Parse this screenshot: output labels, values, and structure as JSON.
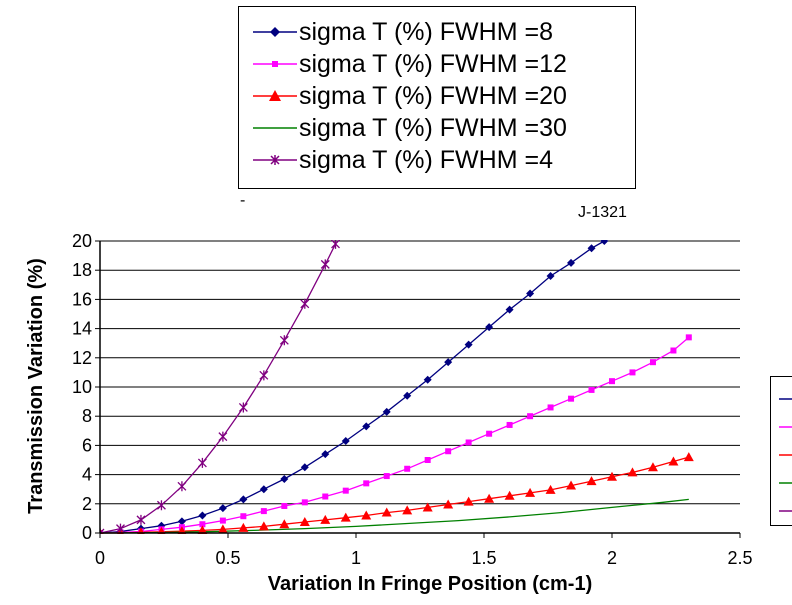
{
  "chart_data": {
    "type": "line",
    "xlabel": "Variation In Fringe Position (cm-1)",
    "ylabel": "Transmission Variation (%)",
    "xlim": [
      0,
      2.5
    ],
    "ylim": [
      0,
      20
    ],
    "x_ticks": [
      "0",
      "0.5",
      "1",
      "1.5",
      "2",
      "2.5"
    ],
    "y_ticks": [
      "0",
      "2",
      "4",
      "6",
      "8",
      "10",
      "12",
      "14",
      "16",
      "18",
      "20"
    ],
    "grid": "horizontal",
    "legend_position": "top",
    "annotations": [
      "-",
      "J-1321"
    ],
    "series": [
      {
        "name": "sigma T (%) FWHM =8",
        "color": "#000080",
        "marker": "diamond",
        "x": [
          0,
          0.08,
          0.16,
          0.24,
          0.32,
          0.4,
          0.48,
          0.56,
          0.64,
          0.72,
          0.8,
          0.88,
          0.96,
          1.04,
          1.12,
          1.2,
          1.28,
          1.36,
          1.44,
          1.52,
          1.6,
          1.68,
          1.76,
          1.84,
          1.92,
          1.97
        ],
        "y": [
          0.0,
          0.1,
          0.3,
          0.5,
          0.8,
          1.2,
          1.7,
          2.3,
          3.0,
          3.7,
          4.5,
          5.4,
          6.3,
          7.3,
          8.3,
          9.4,
          10.5,
          11.7,
          12.9,
          14.1,
          15.3,
          16.4,
          17.6,
          18.5,
          19.5,
          20.0
        ]
      },
      {
        "name": "sigma T (%) FWHM =12",
        "color": "#FF00FF",
        "marker": "square",
        "x": [
          0,
          0.08,
          0.16,
          0.24,
          0.32,
          0.4,
          0.48,
          0.56,
          0.64,
          0.72,
          0.8,
          0.88,
          0.96,
          1.04,
          1.12,
          1.2,
          1.28,
          1.36,
          1.44,
          1.52,
          1.6,
          1.68,
          1.76,
          1.84,
          1.92,
          2.0,
          2.08,
          2.16,
          2.24,
          2.3
        ],
        "y": [
          0.0,
          0.05,
          0.1,
          0.25,
          0.4,
          0.6,
          0.85,
          1.15,
          1.5,
          1.85,
          2.1,
          2.5,
          2.9,
          3.4,
          3.9,
          4.4,
          5.0,
          5.6,
          6.2,
          6.8,
          7.4,
          8.0,
          8.6,
          9.2,
          9.8,
          10.4,
          11.0,
          11.7,
          12.5,
          13.4
        ]
      },
      {
        "name": "sigma T (%) FWHM =20",
        "color": "#FF0000",
        "marker": "triangle",
        "x": [
          0,
          0.08,
          0.16,
          0.24,
          0.32,
          0.4,
          0.48,
          0.56,
          0.64,
          0.72,
          0.8,
          0.88,
          0.96,
          1.04,
          1.12,
          1.2,
          1.28,
          1.36,
          1.44,
          1.52,
          1.6,
          1.68,
          1.76,
          1.84,
          1.92,
          2.0,
          2.08,
          2.16,
          2.24,
          2.3
        ],
        "y": [
          0.0,
          0.0,
          0.05,
          0.08,
          0.12,
          0.18,
          0.25,
          0.35,
          0.45,
          0.6,
          0.75,
          0.9,
          1.05,
          1.2,
          1.4,
          1.55,
          1.75,
          1.95,
          2.15,
          2.35,
          2.55,
          2.75,
          2.95,
          3.25,
          3.55,
          3.85,
          4.15,
          4.5,
          4.9,
          5.2
        ]
      },
      {
        "name": "sigma T (%) FWHM =30",
        "color": "#008000",
        "marker": "none",
        "x": [
          0,
          0.2,
          0.4,
          0.6,
          0.8,
          1.0,
          1.2,
          1.4,
          1.6,
          1.8,
          2.0,
          2.2,
          2.3
        ],
        "y": [
          0.0,
          0.02,
          0.08,
          0.18,
          0.3,
          0.45,
          0.65,
          0.85,
          1.1,
          1.4,
          1.75,
          2.1,
          2.3
        ]
      },
      {
        "name": "sigma T (%) FWHM =4",
        "color": "#800080",
        "marker": "star",
        "x": [
          0,
          0.08,
          0.16,
          0.24,
          0.32,
          0.4,
          0.48,
          0.56,
          0.64,
          0.72,
          0.8,
          0.88,
          0.92
        ],
        "y": [
          0.0,
          0.3,
          0.9,
          1.9,
          3.2,
          4.8,
          6.6,
          8.6,
          10.8,
          13.2,
          15.7,
          18.4,
          19.8
        ]
      }
    ]
  }
}
